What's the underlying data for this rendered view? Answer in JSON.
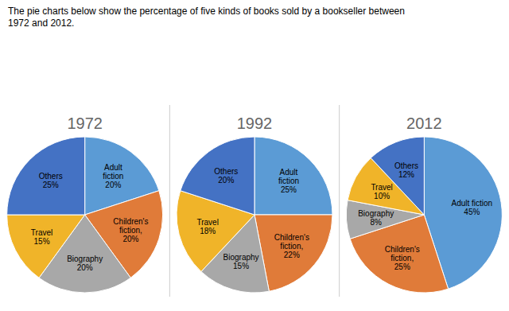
{
  "chart_data": {
    "type": "pie",
    "title": "The pie charts below show the percentage of five kinds of books sold by a bookseller between\n1972 and 2012.",
    "series": [
      {
        "name": "1972",
        "values": [
          20,
          20,
          20,
          15,
          25
        ],
        "value_labels": [
          "Adult\nfiction\n20%",
          "Children's\nfiction,\n20%",
          "Biography\n20%",
          "Travel\n15%",
          "Others\n25%"
        ],
        "colors": [
          "#5B9BD5",
          "#E07B39",
          "#A8A8A8",
          "#F0B429",
          "#4472C4"
        ]
      },
      {
        "name": "1992",
        "values": [
          25,
          22,
          15,
          18,
          20
        ],
        "value_labels": [
          "Adult\nfiction\n25%",
          "Children's\nfiction,\n22%",
          "Biography\n15%",
          "Travel\n18%",
          "Others\n20%"
        ],
        "colors": [
          "#5B9BD5",
          "#E07B39",
          "#A8A8A8",
          "#F0B429",
          "#4472C4"
        ]
      },
      {
        "name": "2012",
        "values": [
          45,
          25,
          8,
          10,
          12
        ],
        "value_labels": [
          "Adult fiction\n45%",
          "Children's\nfiction,\n25%",
          "Biography\n8%",
          "Travel\n10%",
          "Others\n12%"
        ],
        "colors": [
          "#5B9BD5",
          "#E07B39",
          "#A8A8A8",
          "#F0B429",
          "#4472C4"
        ]
      }
    ]
  }
}
